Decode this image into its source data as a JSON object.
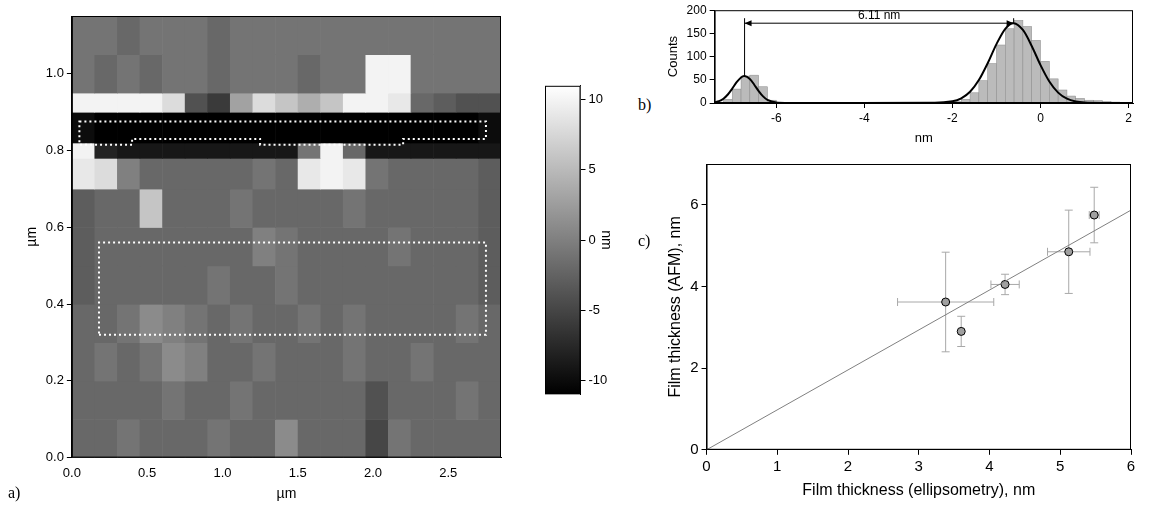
{
  "chart_data": [
    {
      "type": "heatmap",
      "panel_label": "a)",
      "x_label": "µm",
      "y_label": "µm",
      "color": "gray",
      "xlim": [
        0,
        2.85
      ],
      "ylim": [
        0,
        1.15
      ],
      "xticks": [
        {
          "value": 0,
          "label": "0.0"
        },
        0.5,
        {
          "value": 1,
          "label": "1.0"
        },
        1.5,
        {
          "value": 2,
          "label": "2.0"
        },
        2.5
      ],
      "yticks": [
        {
          "value": 0,
          "label": "0.0"
        },
        0.2,
        0.4,
        0.6,
        0.8,
        {
          "value": 1,
          "label": "1.0"
        }
      ],
      "x_edges": [
        0,
        0.15,
        0.3,
        0.45,
        0.6,
        0.75,
        0.9,
        1.05,
        1.2,
        1.35,
        1.5,
        1.65,
        1.8,
        1.95,
        2.1,
        2.25,
        2.4,
        2.55,
        2.7,
        2.85
      ],
      "y_edges": [
        0,
        0.1,
        0.2,
        0.3,
        0.4,
        0.5,
        0.6,
        0.7,
        0.78,
        0.82,
        0.9,
        0.95,
        1.05,
        1.15
      ],
      "cells": [
        [
          -2,
          -2,
          -1,
          -2,
          -2,
          -2,
          -1,
          -2,
          -2,
          1,
          -2,
          -2,
          -2,
          -5,
          -1,
          -2,
          -2,
          -2,
          -2
        ],
        [
          -2,
          -2,
          -2,
          -2,
          -1,
          -2,
          -2,
          -1,
          -2,
          -2,
          -2,
          -2,
          -2,
          -4,
          -2,
          -2,
          -2,
          -1,
          -2
        ],
        [
          -2,
          -1,
          -2,
          -1,
          1,
          0,
          -2,
          -2,
          -1,
          -2,
          -2,
          -2,
          -1,
          -2,
          -2,
          -1,
          -2,
          -2,
          -2
        ],
        [
          -2,
          -2,
          -1,
          1,
          0,
          -1,
          -2,
          -1,
          -2,
          -2,
          -1,
          -2,
          -1,
          -2,
          -2,
          -2,
          -2,
          -1,
          -2
        ],
        [
          -3,
          -2,
          -2,
          -2,
          -2,
          -2,
          -1,
          -2,
          -2,
          -1,
          -2,
          -2,
          -2,
          -2,
          -2,
          -2,
          -2,
          -2,
          -3
        ],
        [
          -3,
          -2,
          -2,
          -2,
          -2,
          -2,
          -2,
          -2,
          0,
          -1,
          -2,
          -2,
          -2,
          -2,
          -1,
          -2,
          -2,
          -2,
          -3
        ],
        [
          -3,
          -2,
          -2,
          6,
          -2,
          -2,
          -2,
          -1,
          -2,
          -2,
          -2,
          -2,
          -1,
          -2,
          -2,
          -2,
          -2,
          -2,
          -3
        ],
        [
          9,
          8,
          0,
          -2,
          -2,
          -2,
          -2,
          -2,
          -1,
          -2,
          9,
          10,
          9,
          -1,
          -2,
          -2,
          -2,
          -2,
          -3
        ],
        [
          10,
          -8,
          -9,
          -9,
          -9,
          -9,
          -9,
          -9,
          -9,
          -9,
          -1,
          10,
          -2,
          -9,
          -9,
          -9,
          -9,
          -9,
          -9
        ],
        [
          -10,
          -11,
          -11,
          -11,
          -11,
          -11,
          -11,
          -11,
          -11,
          -11,
          -11,
          -11,
          -11,
          -11,
          -11,
          -11,
          -11,
          -11,
          -10
        ],
        [
          10,
          10,
          10,
          10,
          8,
          -4,
          -6,
          3,
          8,
          6,
          4,
          6,
          10,
          10,
          9,
          -2,
          -3,
          -4,
          -4
        ],
        [
          -1,
          -2,
          -1,
          -2,
          -1,
          -1,
          -2,
          -1,
          -1,
          -1,
          -2,
          -1,
          -1,
          10,
          10,
          -1,
          -1,
          -1,
          -1
        ],
        [
          -1,
          -1,
          -2,
          -1,
          -1,
          -1,
          -2,
          -1,
          -1,
          -1,
          -1,
          -1,
          -1,
          -1,
          -1,
          -1,
          -1,
          -1,
          -1
        ]
      ],
      "colorbar": {
        "label": "nm",
        "range": [
          -11,
          11
        ],
        "ticks": [
          -10,
          -5,
          0,
          5,
          10
        ]
      },
      "regions": [
        [
          [
            0.05,
            0.875
          ],
          [
            2.75,
            0.875
          ],
          [
            2.75,
            0.83
          ],
          [
            2.2,
            0.83
          ],
          [
            2.2,
            0.815
          ],
          [
            1.25,
            0.815
          ],
          [
            1.25,
            0.83
          ],
          [
            0.4,
            0.83
          ],
          [
            0.4,
            0.815
          ],
          [
            0.05,
            0.815
          ]
        ],
        [
          [
            0.18,
            0.32
          ],
          [
            2.75,
            0.32
          ],
          [
            2.75,
            0.56
          ],
          [
            0.18,
            0.56
          ]
        ]
      ],
      "grid": false
    },
    {
      "type": "histogram",
      "panel_label": "b)",
      "x_label": "nm",
      "y_label": "Counts",
      "color": "#bbbbbb",
      "xlim": [
        -7.4,
        2.1
      ],
      "ylim": [
        0,
        200
      ],
      "xticks": [
        -6,
        -4,
        -2,
        0,
        2
      ],
      "yticks": [
        0,
        50,
        100,
        150,
        200
      ],
      "bins": [
        -7.4,
        -7.2,
        -7.0,
        -6.8,
        -6.6,
        -6.4,
        -6.2,
        -6.0,
        -5.8,
        -5.6,
        -5.4,
        -5.2,
        -5.0,
        -4.8,
        -4.6,
        -4.4,
        -4.2,
        -4.0,
        -3.8,
        -3.6,
        -3.4,
        -3.2,
        -3.0,
        -2.8,
        -2.6,
        -2.4,
        -2.2,
        -2.0,
        -1.8,
        -1.6,
        -1.4,
        -1.2,
        -1.0,
        -0.8,
        -0.6,
        -0.4,
        -0.2,
        0,
        0.2,
        0.4,
        0.6,
        0.8,
        1.0,
        1.2,
        1.4,
        1.6,
        1.8,
        2.0
      ],
      "counts": [
        0,
        8,
        30,
        58,
        60,
        35,
        6,
        0,
        0,
        0,
        0,
        0,
        0,
        0,
        0,
        0,
        0,
        0,
        0,
        0,
        0,
        0,
        0,
        0,
        0,
        0,
        1,
        3,
        8,
        22,
        48,
        85,
        125,
        160,
        178,
        165,
        135,
        90,
        52,
        28,
        15,
        10,
        6,
        5,
        3,
        2,
        1
      ],
      "fit": {
        "color": "#000000",
        "line_style": "solid",
        "x": [
          -7.4,
          -7.3,
          -7.2,
          -7.1,
          -7.0,
          -6.9,
          -6.8,
          -6.72,
          -6.6,
          -6.5,
          -6.4,
          -6.3,
          -6.2,
          -6.0,
          -5.8,
          -2.4,
          -2.0,
          -1.8,
          -1.6,
          -1.4,
          -1.2,
          -1.0,
          -0.8,
          -0.61,
          -0.4,
          -0.2,
          0.0,
          0.2,
          0.4,
          0.6,
          0.8,
          1.0,
          1.4,
          2.0
        ],
        "values": [
          1.4,
          3.9,
          9.2,
          18.3,
          31,
          44.8,
          55.1,
          58,
          51.7,
          39.4,
          25.6,
          14.2,
          6.7,
          0.9,
          0,
          0.3,
          3.6,
          10.1,
          24.2,
          49.4,
          85.7,
          126.9,
          160,
          172,
          157.5,
          122.9,
          81.7,
          46.4,
          22.4,
          9.2,
          3.2,
          1.0,
          0.1,
          0
        ]
      },
      "annotations": [
        {
          "text": "6.11 nm",
          "x": [
            -6.72,
            -0.61
          ],
          "y": 172,
          "line_from_y": [
            58,
            172
          ]
        }
      ],
      "grid": false
    },
    {
      "type": "scatter",
      "panel_label": "c)",
      "x_label": "Film thickness (ellipsometry), nm",
      "y_label": "Film thickness (AFM), nm",
      "color": "#a0a0a0",
      "marker": "circle",
      "xlim": [
        0,
        6
      ],
      "ylim": [
        0,
        7
      ],
      "xticks": [
        0,
        1,
        2,
        3,
        4,
        5,
        6
      ],
      "yticks": [
        0,
        2,
        4,
        6
      ],
      "x": [
        3.38,
        3.6,
        4.22,
        5.12,
        5.48
      ],
      "values": [
        3.62,
        2.9,
        4.05,
        4.85,
        5.75
      ],
      "x_error": [
        0.68,
        0,
        0.2,
        0.3,
        0.07
      ],
      "y_error": [
        1.22,
        0.37,
        0.25,
        1.02,
        0.68
      ],
      "fit": {
        "x": [
          0,
          6
        ],
        "values": [
          0,
          5.87
        ],
        "color": "#808080",
        "line_style": "solid"
      },
      "grid": false
    }
  ]
}
